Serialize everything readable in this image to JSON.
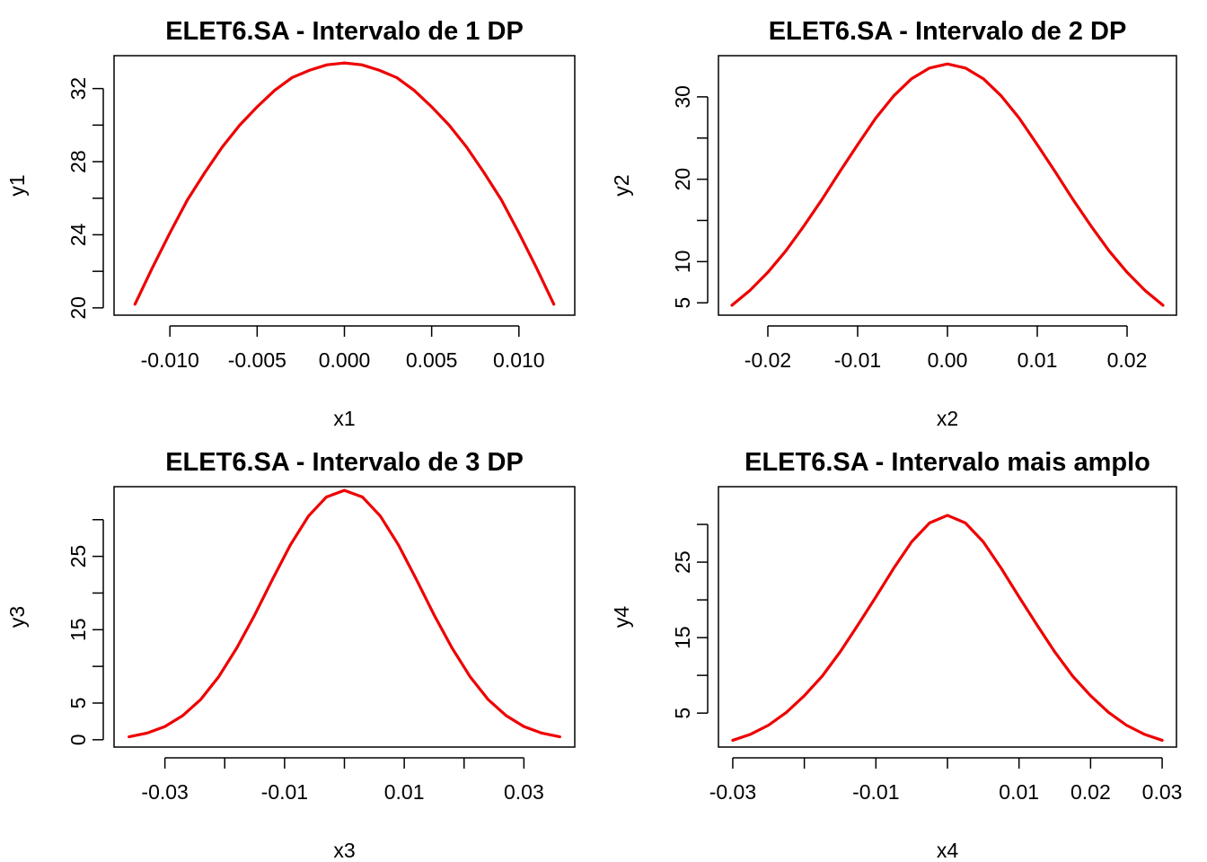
{
  "chart_data": [
    {
      "type": "line",
      "title": "ELET6.SA - Intervalo de 1 DP",
      "xlabel": "x1",
      "ylabel": "y1",
      "xlim": [
        -0.0132,
        0.0132
      ],
      "ylim": [
        19.6,
        33.8
      ],
      "xticks": [
        -0.01,
        -0.005,
        0.0,
        0.005,
        0.01
      ],
      "xtick_labels": [
        "-0.010",
        "-0.005",
        "0.000",
        "0.005",
        "0.010"
      ],
      "xminor_ticks": [],
      "yticks": [
        20,
        24,
        28,
        32
      ],
      "ytick_labels": [
        "20",
        "24",
        "28",
        "32"
      ],
      "yminor_ticks": [
        22,
        26,
        30
      ],
      "grid": false,
      "color": "#ee0000",
      "series": [
        {
          "x": [
            -0.012,
            -0.011,
            -0.01,
            -0.009,
            -0.008,
            -0.007,
            -0.006,
            -0.005,
            -0.004,
            -0.003,
            -0.002,
            -0.001,
            0.0,
            0.001,
            0.002,
            0.003,
            0.004,
            0.005,
            0.006,
            0.007,
            0.008,
            0.009,
            0.01,
            0.011,
            0.012
          ],
          "y": [
            20.2,
            22.2,
            24.1,
            25.9,
            27.4,
            28.8,
            30.0,
            31.0,
            31.9,
            32.6,
            33.0,
            33.3,
            33.4,
            33.3,
            33.0,
            32.6,
            31.9,
            31.0,
            30.0,
            28.8,
            27.4,
            25.9,
            24.1,
            22.2,
            20.2
          ]
        }
      ]
    },
    {
      "type": "line",
      "title": "ELET6.SA - Intervalo de 2 DP",
      "xlabel": "x2",
      "ylabel": "y2",
      "xlim": [
        -0.0255,
        0.0255
      ],
      "ylim": [
        3.5,
        35.0
      ],
      "xticks": [
        -0.02,
        -0.01,
        0.0,
        0.01,
        0.02
      ],
      "xtick_labels": [
        "-0.02",
        "-0.01",
        "0.00",
        "0.01",
        "0.02"
      ],
      "xminor_ticks": [],
      "yticks": [
        5,
        10,
        20,
        30
      ],
      "ytick_labels": [
        "5",
        "10",
        "20",
        "30"
      ],
      "yminor_ticks": [
        15,
        25
      ],
      "grid": false,
      "color": "#ee0000",
      "series": [
        {
          "x": [
            -0.024,
            -0.022,
            -0.02,
            -0.018,
            -0.016,
            -0.014,
            -0.012,
            -0.01,
            -0.008,
            -0.006,
            -0.004,
            -0.002,
            0.0,
            0.002,
            0.004,
            0.006,
            0.008,
            0.01,
            0.012,
            0.014,
            0.016,
            0.018,
            0.02,
            0.022,
            0.024
          ],
          "y": [
            4.7,
            6.5,
            8.7,
            11.3,
            14.3,
            17.5,
            20.9,
            24.2,
            27.4,
            30.1,
            32.2,
            33.5,
            34.0,
            33.5,
            32.2,
            30.1,
            27.4,
            24.2,
            20.9,
            17.5,
            14.3,
            11.3,
            8.7,
            6.5,
            4.7
          ]
        }
      ]
    },
    {
      "type": "line",
      "title": "ELET6.SA - Intervalo de 3 DP",
      "xlabel": "x3",
      "ylabel": "y3",
      "xlim": [
        -0.0385,
        0.0385
      ],
      "ylim": [
        -1.0,
        34.5
      ],
      "xticks": [
        -0.03,
        -0.01,
        0.01,
        0.03
      ],
      "xtick_labels": [
        "-0.03",
        "-0.01",
        "0.01",
        "0.03"
      ],
      "xminor_ticks": [
        -0.02,
        0.0,
        0.02
      ],
      "yticks": [
        0,
        5,
        15,
        25
      ],
      "ytick_labels": [
        "0",
        "5",
        "15",
        "25"
      ],
      "yminor_ticks": [
        10,
        20,
        30
      ],
      "grid": false,
      "color": "#ee0000",
      "series": [
        {
          "x": [
            -0.036,
            -0.033,
            -0.03,
            -0.027,
            -0.024,
            -0.021,
            -0.018,
            -0.015,
            -0.012,
            -0.009,
            -0.006,
            -0.003,
            0.0,
            0.003,
            0.006,
            0.009,
            0.012,
            0.015,
            0.018,
            0.021,
            0.024,
            0.027,
            0.03,
            0.033,
            0.036
          ],
          "y": [
            0.4,
            0.9,
            1.8,
            3.3,
            5.5,
            8.6,
            12.5,
            17.0,
            21.9,
            26.6,
            30.5,
            33.1,
            34.0,
            33.1,
            30.5,
            26.6,
            21.9,
            17.0,
            12.5,
            8.6,
            5.5,
            3.3,
            1.8,
            0.9,
            0.4
          ]
        }
      ]
    },
    {
      "type": "line",
      "title": "ELET6.SA - Intervalo mais amplo",
      "xlabel": "x4",
      "ylabel": "y4",
      "xlim": [
        -0.032,
        0.032
      ],
      "ylim": [
        0.5,
        35.0
      ],
      "xticks": [
        -0.03,
        -0.01,
        0.01,
        0.02,
        0.03
      ],
      "xtick_labels": [
        "-0.03",
        "-0.01",
        "0.01",
        "0.02",
        "0.03"
      ],
      "xminor_ticks": [
        -0.02,
        0.0
      ],
      "yticks": [
        5,
        15,
        25
      ],
      "ytick_labels": [
        "5",
        "15",
        "25"
      ],
      "yminor_ticks": [
        10,
        20,
        30
      ],
      "grid": false,
      "color": "#ee0000",
      "series": [
        {
          "x": [
            -0.03,
            -0.0275,
            -0.025,
            -0.0225,
            -0.02,
            -0.0175,
            -0.015,
            -0.0125,
            -0.01,
            -0.0075,
            -0.005,
            -0.0025,
            0.0,
            0.0025,
            0.005,
            0.0075,
            0.01,
            0.0125,
            0.015,
            0.0175,
            0.02,
            0.0225,
            0.025,
            0.0275,
            0.03
          ],
          "y": [
            1.4,
            2.2,
            3.4,
            5.1,
            7.3,
            9.9,
            13.1,
            16.7,
            20.4,
            24.2,
            27.7,
            30.2,
            31.2,
            30.2,
            27.7,
            24.2,
            20.4,
            16.7,
            13.1,
            9.9,
            7.3,
            5.1,
            3.4,
            2.2,
            1.4
          ]
        }
      ]
    }
  ]
}
